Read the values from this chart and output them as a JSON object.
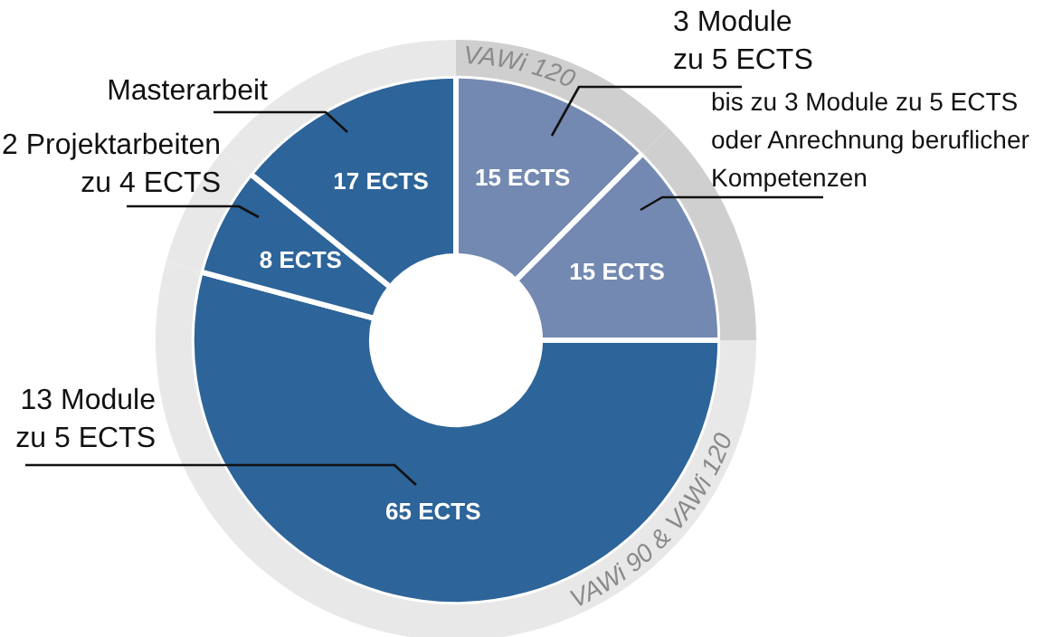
{
  "chart_data": {
    "type": "donut",
    "categories": [
      "3 Module zu 5 ECTS",
      "bis zu 3 Module zu 5 ECTS oder Anrechnung beruflicher Kompetenzen",
      "13 Module zu 5 ECTS",
      "2 Projektarbeiten zu 4 ECTS",
      "Masterarbeit"
    ],
    "series": [
      {
        "values": [
          15,
          15,
          65,
          8,
          17
        ],
        "colors": [
          "#7389b1",
          "#7389b1",
          "#2d6499",
          "#2d6499",
          "#2d6499"
        ],
        "value_labels": [
          "15 ECTS",
          "15 ECTS",
          "65 ECTS",
          "8 ECTS",
          "17 ECTS"
        ]
      },
      {
        "values": [
          12.5,
          12.5,
          54.2,
          6.6,
          14.2
        ],
        "colors": [
          "#cfcfcf",
          "#cfcfcf",
          "#e8e8e8",
          "#e8e8e8",
          "#e8e8e8"
        ]
      }
    ],
    "annotations": [
      "VAWi 120",
      "VAWi 90 & VAWi 120"
    ],
    "legend": false
  }
}
